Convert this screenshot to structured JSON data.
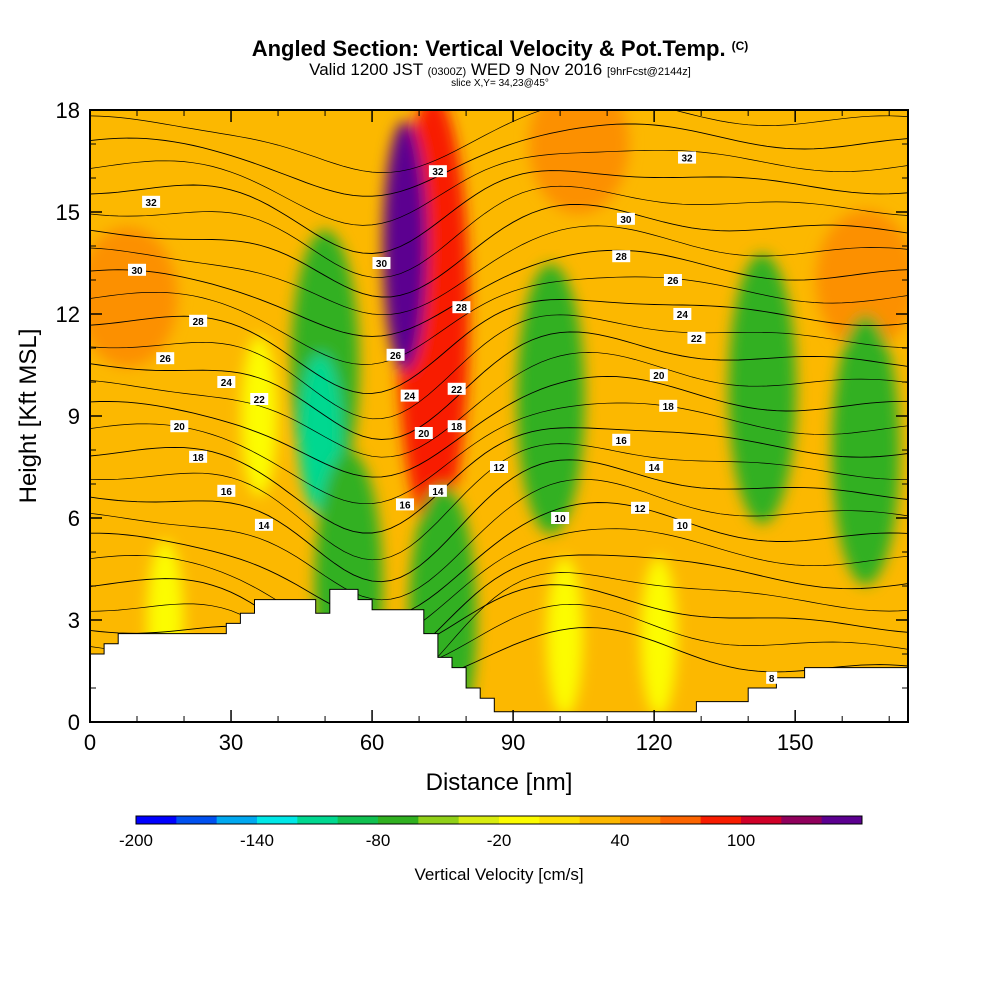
{
  "header": {
    "title": "Angled Section: Vertical Velocity & Pot.Temp.",
    "title_units": "(C)",
    "valid_prefix": "Valid 1200 JST",
    "valid_utc": "(0300Z)",
    "valid_date": "WED 9 Nov 2016",
    "forecast": "[9hrFcst@2144z]",
    "slice": "slice X,Y= 34,23@45°"
  },
  "chart_data": {
    "type": "heatmap",
    "xlabel": "Distance [nm]",
    "ylabel": "Height [Kft MSL]",
    "xlim": [
      0,
      174
    ],
    "ylim": [
      0,
      18
    ],
    "x_ticks": [
      "0",
      "30",
      "60",
      "90",
      "120",
      "150"
    ],
    "y_ticks": [
      "0",
      "3",
      "6",
      "9",
      "12",
      "15",
      "18"
    ],
    "colorbar": {
      "label": "Vertical Velocity [cm/s]",
      "tick_labels": [
        "-200",
        "-140",
        "-80",
        "-20",
        "40",
        "100"
      ],
      "colors": [
        "#0000ff",
        "#0050f0",
        "#00a8f0",
        "#00e8e8",
        "#00d890",
        "#10c050",
        "#30b020",
        "#90d018",
        "#d8ec10",
        "#fcfc00",
        "#fce000",
        "#fcb800",
        "#fc9000",
        "#fc6400",
        "#f81c00",
        "#d00028",
        "#90005c",
        "#5c0090"
      ]
    },
    "velocity_features": [
      {
        "x": 8,
        "y": 12.5,
        "w": "orange"
      },
      {
        "x": 165,
        "y": 13,
        "w": "orange"
      },
      {
        "x": 104,
        "y": 17,
        "w": "orange"
      },
      {
        "x": 50,
        "y": 10.5,
        "w": "green"
      },
      {
        "x": 49,
        "y": 8.5,
        "w": "cyan"
      },
      {
        "x": 55,
        "y": 4,
        "w": "green"
      },
      {
        "x": 73,
        "y": 12,
        "w": "red"
      },
      {
        "x": 67,
        "y": 14,
        "w": "purple"
      },
      {
        "x": 75,
        "y": 3,
        "w": "green"
      },
      {
        "x": 98,
        "y": 9.5,
        "w": "green"
      },
      {
        "x": 143,
        "y": 9.8,
        "w": "green"
      },
      {
        "x": 165,
        "y": 8,
        "w": "green"
      },
      {
        "x": 101,
        "y": 2.5,
        "w": "yellow"
      },
      {
        "x": 121,
        "y": 2.5,
        "w": "yellow"
      },
      {
        "x": 16,
        "y": 3,
        "w": "yellow"
      },
      {
        "x": 36,
        "y": 9,
        "w": "yellow"
      }
    ],
    "isentrope_levels": [
      8,
      10,
      12,
      14,
      16,
      18,
      20,
      22,
      24,
      26,
      28,
      30,
      32
    ],
    "isentrope_labels": [
      {
        "text": "32",
        "x": 13,
        "y": 15.3
      },
      {
        "text": "30",
        "x": 10,
        "y": 13.3
      },
      {
        "text": "28",
        "x": 23,
        "y": 11.8
      },
      {
        "text": "26",
        "x": 16,
        "y": 10.7
      },
      {
        "text": "24",
        "x": 29,
        "y": 10
      },
      {
        "text": "22",
        "x": 36,
        "y": 9.5
      },
      {
        "text": "20",
        "x": 19,
        "y": 8.7
      },
      {
        "text": "18",
        "x": 23,
        "y": 7.8
      },
      {
        "text": "16",
        "x": 29,
        "y": 6.8
      },
      {
        "text": "14",
        "x": 37,
        "y": 5.8
      },
      {
        "text": "32",
        "x": 74,
        "y": 16.2
      },
      {
        "text": "30",
        "x": 62,
        "y": 13.5
      },
      {
        "text": "28",
        "x": 79,
        "y": 12.2
      },
      {
        "text": "26",
        "x": 65,
        "y": 10.8
      },
      {
        "text": "24",
        "x": 68,
        "y": 9.6
      },
      {
        "text": "22",
        "x": 78,
        "y": 9.8
      },
      {
        "text": "20",
        "x": 71,
        "y": 8.5
      },
      {
        "text": "18",
        "x": 78,
        "y": 8.7
      },
      {
        "text": "16",
        "x": 67,
        "y": 6.4
      },
      {
        "text": "14",
        "x": 74,
        "y": 6.8
      },
      {
        "text": "12",
        "x": 87,
        "y": 7.5
      },
      {
        "text": "10",
        "x": 100,
        "y": 6.0
      },
      {
        "text": "32",
        "x": 127,
        "y": 16.6
      },
      {
        "text": "30",
        "x": 114,
        "y": 14.8
      },
      {
        "text": "28",
        "x": 113,
        "y": 13.7
      },
      {
        "text": "26",
        "x": 124,
        "y": 13.0
      },
      {
        "text": "24",
        "x": 126,
        "y": 12.0
      },
      {
        "text": "22",
        "x": 129,
        "y": 11.3
      },
      {
        "text": "20",
        "x": 121,
        "y": 10.2
      },
      {
        "text": "18",
        "x": 123,
        "y": 9.3
      },
      {
        "text": "16",
        "x": 113,
        "y": 8.3
      },
      {
        "text": "14",
        "x": 120,
        "y": 7.5
      },
      {
        "text": "12",
        "x": 117,
        "y": 6.3
      },
      {
        "text": "10",
        "x": 126,
        "y": 5.8
      },
      {
        "text": "8",
        "x": 145,
        "y": 1.3
      }
    ],
    "terrain": [
      [
        0,
        2.0
      ],
      [
        3,
        2.0
      ],
      [
        3,
        2.3
      ],
      [
        6,
        2.3
      ],
      [
        6,
        2.6
      ],
      [
        9,
        2.6
      ],
      [
        9,
        2.6
      ],
      [
        29,
        2.6
      ],
      [
        29,
        2.9
      ],
      [
        32,
        2.9
      ],
      [
        32,
        3.2
      ],
      [
        35,
        3.2
      ],
      [
        35,
        3.6
      ],
      [
        48,
        3.6
      ],
      [
        48,
        3.2
      ],
      [
        51,
        3.2
      ],
      [
        51,
        3.9
      ],
      [
        57,
        3.9
      ],
      [
        57,
        3.6
      ],
      [
        60,
        3.6
      ],
      [
        60,
        3.3
      ],
      [
        71,
        3.3
      ],
      [
        71,
        2.6
      ],
      [
        74,
        2.6
      ],
      [
        74,
        1.9
      ],
      [
        77,
        1.9
      ],
      [
        77,
        1.6
      ],
      [
        80,
        1.6
      ],
      [
        80,
        1.0
      ],
      [
        83,
        1.0
      ],
      [
        83,
        0.7
      ],
      [
        86,
        0.7
      ],
      [
        86,
        0.3
      ],
      [
        129,
        0.3
      ],
      [
        129,
        0.6
      ],
      [
        140,
        0.6
      ],
      [
        140,
        1.0
      ],
      [
        146,
        1.0
      ],
      [
        146,
        1.3
      ],
      [
        152,
        1.3
      ],
      [
        152,
        1.6
      ],
      [
        156,
        1.6
      ],
      [
        156,
        1.6
      ],
      [
        174,
        1.6
      ]
    ]
  }
}
